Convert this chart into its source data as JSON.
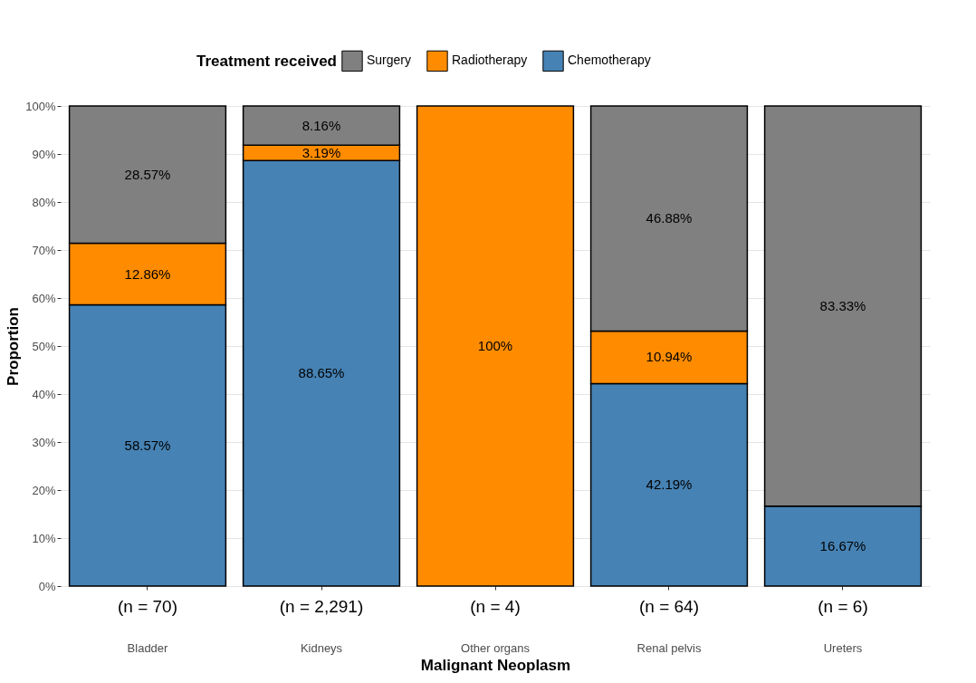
{
  "chart_data": {
    "type": "bar",
    "stacked": true,
    "xlabel": "Malignant Neoplasm",
    "ylabel": "Proportion",
    "legend_title": "Treatment received",
    "legend": "top",
    "grid": "y",
    "categories": [
      "Bladder",
      "Kidneys",
      "Other organs",
      "Renal pelvis",
      "Ureters"
    ],
    "series": [
      {
        "name": "Chemotherapy",
        "color": "#4682b4",
        "values": [
          58.57,
          88.65,
          null,
          42.19,
          16.67
        ],
        "value_labels": [
          "58.57%",
          "88.65%",
          null,
          "42.19%",
          "16.67%"
        ]
      },
      {
        "name": "Radiotherapy",
        "color": "#ff8c00",
        "values": [
          12.86,
          3.19,
          100,
          10.94,
          null
        ],
        "value_labels": [
          "12.86%",
          "3.19%",
          "100%",
          "10.94%",
          null
        ]
      },
      {
        "name": "Surgery",
        "color": "#808080",
        "values": [
          28.57,
          8.16,
          null,
          46.88,
          83.33
        ],
        "value_labels": [
          "28.57%",
          "8.16%",
          null,
          "46.88%",
          "83.33%"
        ]
      }
    ],
    "ylim": [
      0,
      100
    ],
    "yticks": [
      {
        "value": 0,
        "label": "0%"
      },
      {
        "value": 10,
        "label": "10%"
      },
      {
        "value": 20,
        "label": "20%"
      },
      {
        "value": 30,
        "label": "30%"
      },
      {
        "value": 40,
        "label": "40%"
      },
      {
        "value": 50,
        "label": "50%"
      },
      {
        "value": 60,
        "label": "60%"
      },
      {
        "value": 70,
        "label": "70%"
      },
      {
        "value": 80,
        "label": "80%"
      },
      {
        "value": 90,
        "label": "90%"
      },
      {
        "value": 100,
        "label": "100%"
      }
    ],
    "annotations": [
      {
        "text": "(n = 70)",
        "x": "Bladder"
      },
      {
        "text": "(n = 2,291)",
        "x": "Kidneys"
      },
      {
        "text": "(n = 4)",
        "x": "Other organs"
      },
      {
        "text": "(n = 64)",
        "x": "Renal pelvis"
      },
      {
        "text": "(n = 6)",
        "x": "Ureters"
      }
    ]
  }
}
